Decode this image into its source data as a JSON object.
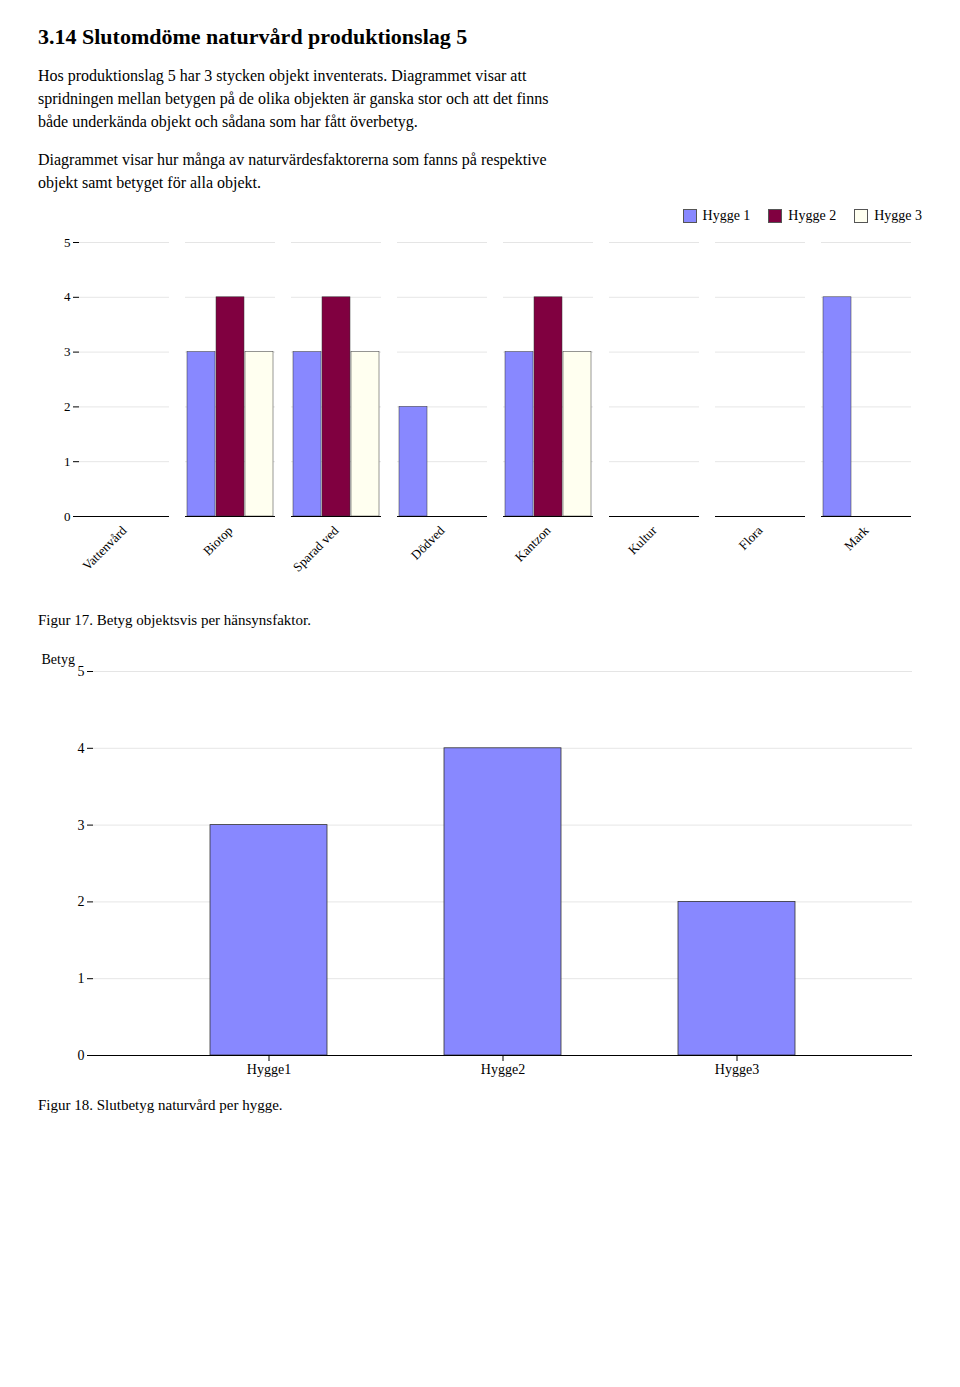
{
  "title": "3.14 Slutomdöme naturvård produktionslag 5",
  "paragraphs": [
    [
      "Hos produktionslag 5 har 3 stycken objekt inventerats. Diagrammet visar att",
      "spridningen mellan betygen på de olika objekten är ganska stor och att det finns",
      "både underkända objekt och sådana som har fått överbetyg."
    ],
    [
      "Diagrammet visar hur många av naturvärdesfaktorerna som fanns på respektive",
      "objekt samt betyget för alla objekt."
    ]
  ],
  "chart_data": [
    {
      "type": "bar",
      "categories": [
        "Vattenvård",
        "Biotop",
        "Sparad ved",
        "Dödved",
        "Kantzon",
        "Kultur",
        "Flora",
        "Mark"
      ],
      "series": [
        {
          "name": "Hygge 1",
          "color": "#8888ff",
          "values": [
            0,
            3,
            3,
            2,
            3,
            0,
            0,
            4
          ]
        },
        {
          "name": "Hygge 2",
          "color": "#800040",
          "values": [
            0,
            4,
            4,
            0,
            4,
            0,
            0,
            0
          ]
        },
        {
          "name": "Hygge 3",
          "color": "#fffff0",
          "values": [
            0,
            3,
            3,
            0,
            3,
            0,
            0,
            0
          ]
        }
      ],
      "ylim": [
        0,
        5
      ],
      "yticks": [
        0,
        1,
        2,
        3,
        4,
        5
      ],
      "grid": true,
      "legend": "upper right",
      "caption": "Figur 17. Betyg objektsvis per hänsynsfaktor."
    },
    {
      "type": "bar",
      "categories": [
        "Hygge1",
        "Hygge2",
        "Hygge3"
      ],
      "values": [
        3,
        4,
        2
      ],
      "color": "#8888ff",
      "ylim": [
        0,
        5
      ],
      "yticks": [
        0,
        1,
        2,
        3,
        4,
        5
      ],
      "ylabel": "Betyg",
      "grid": true,
      "caption": "Figur 18. Slutbetyg naturvård per hygge."
    }
  ]
}
